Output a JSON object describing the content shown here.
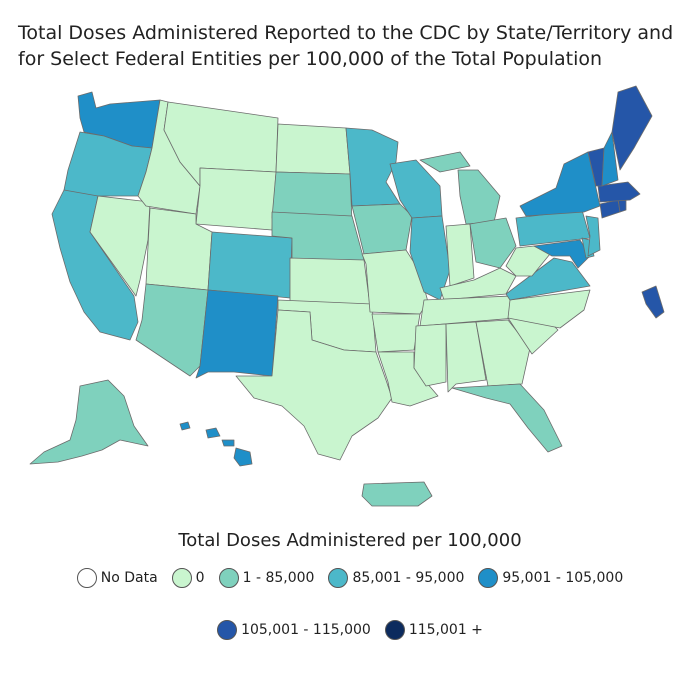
{
  "title_line1": "Total Doses Administered Reported to the CDC by State/Territory and",
  "title_line2": "for Select Federal Entities per 100,000 of the Total Population",
  "legend": {
    "title": "Total Doses Administered per 100,000",
    "items": [
      {
        "label": "No Data",
        "color": "#ffffff"
      },
      {
        "label": "0",
        "color": "#c9f5cf"
      },
      {
        "label": "1 - 85,000",
        "color": "#7fd1bd"
      },
      {
        "label": "85,001 - 95,000",
        "color": "#4cb8c9"
      },
      {
        "label": "95,001 - 105,000",
        "color": "#1f8fc8"
      },
      {
        "label": "105,001 - 115,000",
        "color": "#2556a8"
      },
      {
        "label": "115,001 +",
        "color": "#0c2b5e"
      }
    ]
  },
  "map_data": {
    "WA": 4,
    "OR": 3,
    "CA": 3,
    "NV": 1,
    "ID": 1,
    "MT": 1,
    "WY": 1,
    "UT": 1,
    "AZ": 2,
    "CO": 3,
    "NM": 4,
    "ND": 1,
    "SD": 2,
    "NE": 2,
    "KS": 1,
    "OK": 1,
    "TX": 1,
    "MN": 3,
    "IA": 2,
    "MO": 1,
    "AR": 1,
    "LA": 1,
    "WI": 3,
    "IL": 3,
    "IN": 1,
    "MI": 2,
    "OH": 2,
    "KY": 1,
    "TN": 1,
    "MS": 1,
    "AL": 1,
    "GA": 1,
    "FL": 2,
    "SC": 1,
    "NC": 1,
    "VA": 3,
    "WV": 1,
    "PA": 3,
    "NY": 4,
    "NJ": 3,
    "DE": 3,
    "MD": 4,
    "DC": 5,
    "CT": 5,
    "RI": 5,
    "MA": 5,
    "VT": 5,
    "NH": 4,
    "ME": 5,
    "AK": 2,
    "HI": 4,
    "PR": 2,
    "VI": 5
  }
}
